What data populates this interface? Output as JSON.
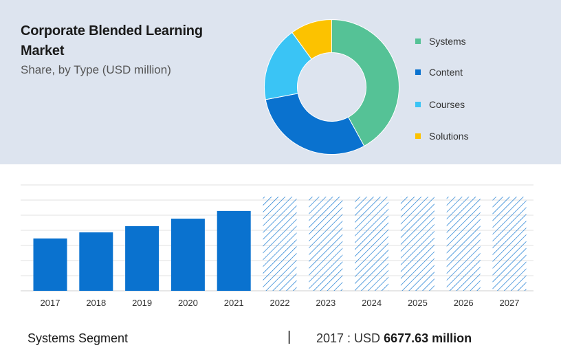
{
  "header": {
    "title": "Corporate Blended Learning Market",
    "subtitle": "Share, by Type (USD million)"
  },
  "colors": {
    "systems": "#55c296",
    "content": "#0a72cf",
    "courses": "#3ac4f5",
    "solutions": "#fcc200",
    "bar": "#0a72cf",
    "hatch": "#0a72cf",
    "panel": "#dde4ef"
  },
  "chart_data": [
    {
      "type": "pie",
      "donut": true,
      "labels": [
        "Systems",
        "Content",
        "Courses",
        "Solutions"
      ],
      "values": [
        42,
        30,
        18,
        10
      ],
      "legend": "right"
    },
    {
      "type": "bar",
      "categories": [
        "2017",
        "2018",
        "2019",
        "2020",
        "2021",
        "2022",
        "2023",
        "2024",
        "2025",
        "2026",
        "2027"
      ],
      "values": [
        6677.63,
        7454,
        8250,
        9200,
        10180,
        12000,
        12000,
        12000,
        12000,
        12000,
        12000
      ],
      "forecast_from": "2022",
      "grid": true,
      "ylim": [
        0,
        13500
      ]
    }
  ],
  "footer": {
    "segment": "Systems Segment",
    "separator": "|",
    "year_prefix": "2017 : USD",
    "value": "6677.63 million"
  }
}
